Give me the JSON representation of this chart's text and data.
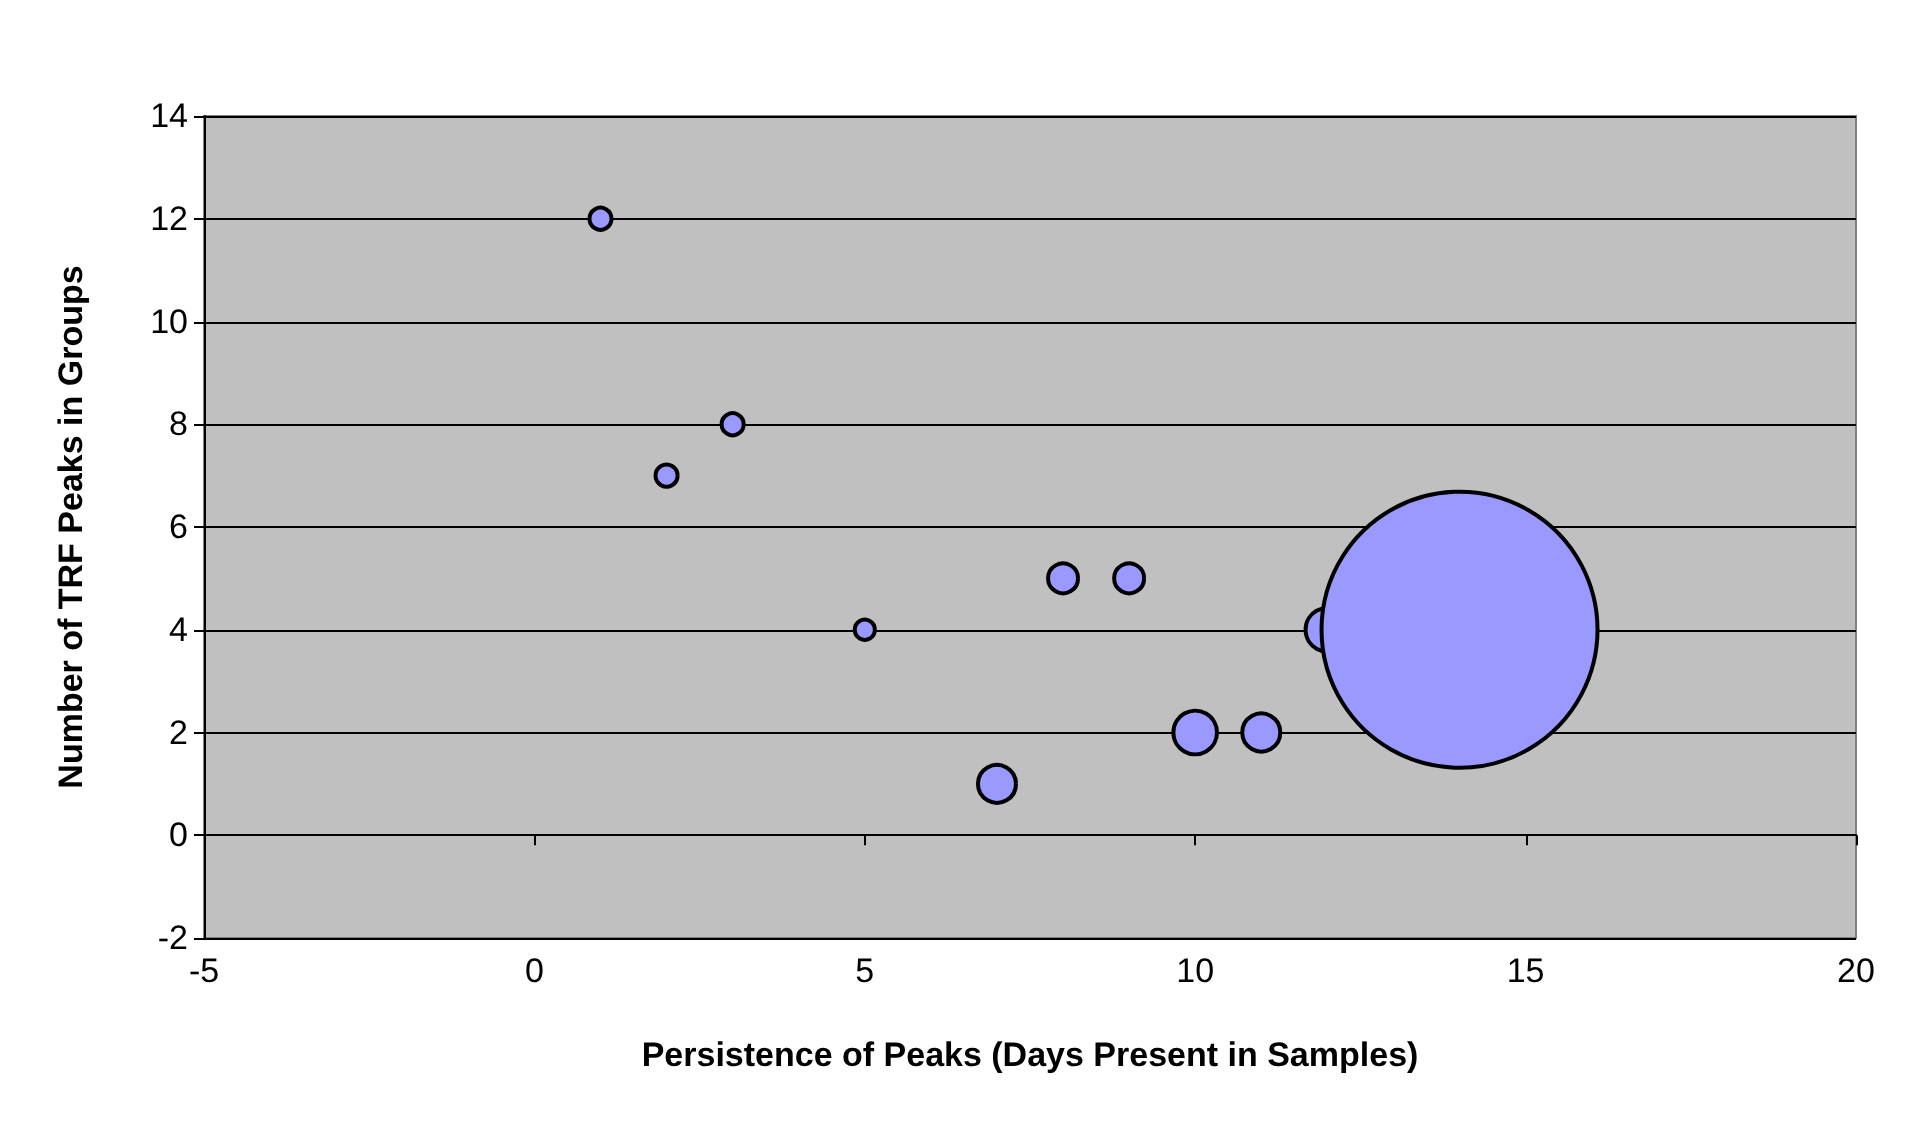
{
  "chart_data": {
    "type": "bubble",
    "xlabel": "Persistence of Peaks (Days Present in Samples)",
    "ylabel": "Number of TRF Peaks in Groups",
    "x": [
      1,
      2,
      3,
      5,
      7,
      8,
      9,
      10,
      11,
      12,
      14
    ],
    "values": [
      12,
      7,
      8,
      4,
      1,
      5,
      5,
      2,
      2,
      4,
      4
    ],
    "sizes": [
      0.0064,
      0.0064,
      0.0064,
      0.0053,
      0.019,
      0.0118,
      0.0118,
      0.025,
      0.019,
      0.025,
      1
    ],
    "color": "#9999ff",
    "xlim": [
      -5,
      20
    ],
    "xticks": [
      -5,
      0,
      5,
      10,
      15,
      20
    ],
    "ylim": [
      -2,
      14
    ],
    "yticks": [
      -2,
      0,
      2,
      4,
      6,
      8,
      10,
      12,
      14
    ],
    "grid": "y"
  }
}
